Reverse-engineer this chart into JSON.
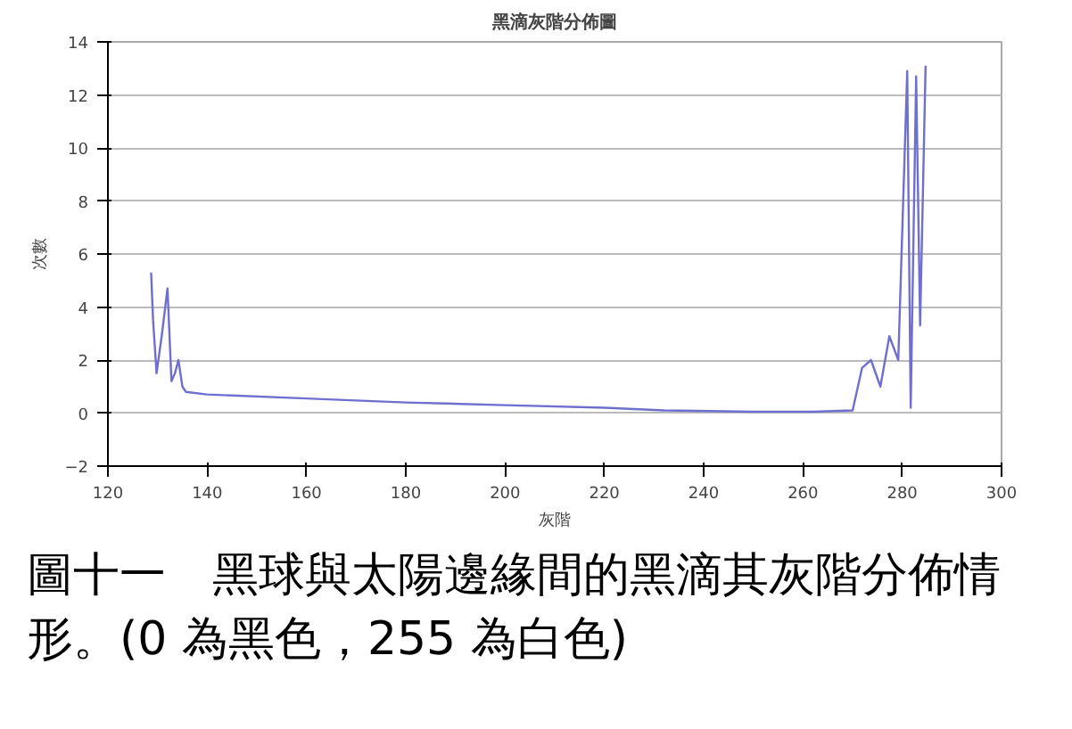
{
  "chart_data": {
    "type": "line",
    "title": "黑滴灰階分佈圖",
    "xlabel": "灰階",
    "ylabel": "次數",
    "x": [
      128.7,
      129.1,
      129.8,
      130.9,
      132.0,
      132.8,
      133.5,
      134.2,
      135.0,
      135.7,
      140,
      160,
      180,
      200,
      220,
      232,
      250,
      262,
      270,
      271.9,
      273.7,
      275.6,
      277.4,
      279.2,
      281.0,
      281.7,
      282.8,
      283.6,
      284.7
    ],
    "series": [
      {
        "color": "#6f6fd0",
        "values": [
          5.3,
          3.5,
          1.5,
          3.0,
          4.7,
          1.2,
          1.5,
          2.0,
          1.0,
          0.8,
          0.7,
          0.55,
          0.4,
          0.3,
          0.2,
          0.1,
          0.05,
          0.05,
          0.1,
          1.7,
          2.0,
          1.0,
          2.9,
          2.0,
          12.9,
          0.2,
          12.7,
          3.3,
          13.1
        ]
      }
    ],
    "xlim": [
      120,
      300
    ],
    "xticks": [
      120,
      140,
      160,
      180,
      200,
      220,
      240,
      260,
      280,
      300
    ],
    "ylim": [
      -2,
      14
    ],
    "yticks": [
      -2,
      0,
      2,
      4,
      6,
      8,
      10,
      12,
      14
    ],
    "grid": "y",
    "marker": "none",
    "line_style": "solid",
    "annotations": [
      "圖十一　黑球與太陽邊緣間的黑滴其灰階分佈情形。(0 為黑色，255 為白色)"
    ]
  }
}
